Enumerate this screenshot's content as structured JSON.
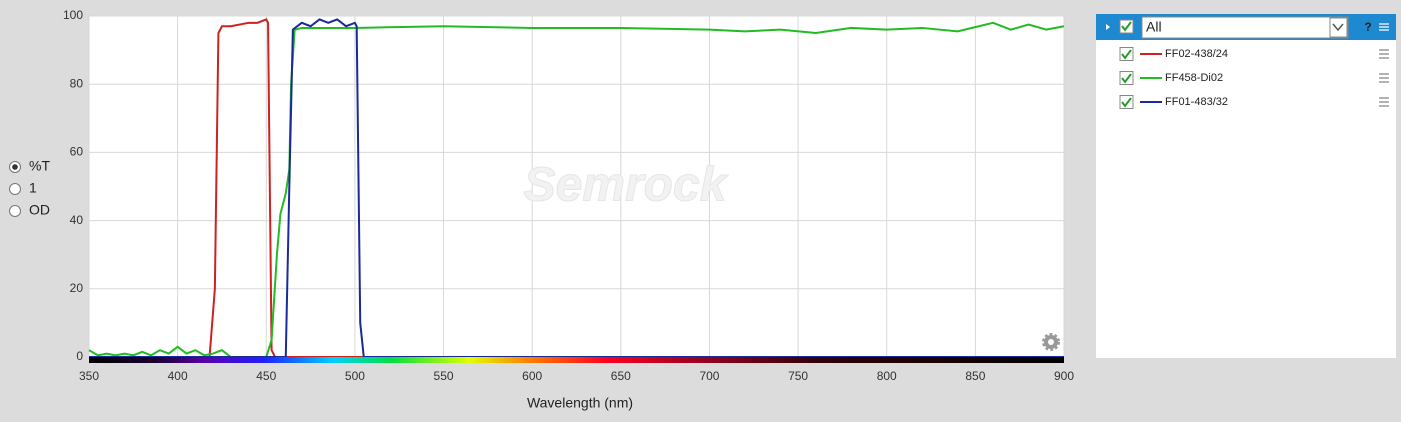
{
  "chart_data": {
    "type": "line",
    "watermark": "Semrock",
    "x_label": "Wavelength (nm)",
    "xlim": [
      350,
      900
    ],
    "xticks": [
      350,
      400,
      450,
      500,
      550,
      600,
      650,
      700,
      750,
      800,
      850,
      900
    ],
    "ylim": [
      0,
      100
    ],
    "yticks": [
      0,
      20,
      40,
      60,
      80,
      100
    ],
    "grid": true,
    "series": [
      {
        "name": "FF02-438/24",
        "color": "#cc2222",
        "x": [
          350,
          418,
          421,
          423,
          425,
          430,
          440,
          445,
          450,
          451,
          453,
          455,
          900
        ],
        "values": [
          0,
          0,
          20,
          95,
          97,
          97,
          98,
          98,
          99,
          98,
          2,
          0,
          0
        ]
      },
      {
        "name": "FF458-Di02",
        "color": "#22bb22",
        "x": [
          350,
          355,
          360,
          365,
          370,
          375,
          380,
          385,
          390,
          395,
          400,
          405,
          410,
          415,
          420,
          425,
          430,
          450,
          453,
          456,
          458,
          461,
          463,
          464,
          466,
          470,
          500,
          550,
          600,
          650,
          700,
          720,
          740,
          760,
          780,
          800,
          820,
          840,
          860,
          870,
          880,
          890,
          900
        ],
        "values": [
          2,
          0.5,
          1,
          0.5,
          1,
          0.5,
          1.5,
          0.5,
          2,
          1,
          3,
          1,
          2,
          0.5,
          1,
          2,
          0,
          0,
          5,
          30,
          42,
          48,
          55,
          80,
          96,
          96.5,
          96.5,
          97,
          96.5,
          96.5,
          96,
          95.5,
          96,
          95,
          96.5,
          96,
          96.5,
          95.5,
          98,
          96,
          97.5,
          96,
          97
        ]
      },
      {
        "name": "FF01-483/32",
        "color": "#1a2a99",
        "x": [
          350,
          461,
          463,
          465,
          470,
          475,
          480,
          485,
          490,
          495,
          500,
          501,
          503,
          505,
          900
        ],
        "values": [
          0,
          0,
          50,
          96,
          98,
          97,
          99,
          98,
          99,
          97,
          98,
          97,
          10,
          0,
          0
        ]
      }
    ]
  },
  "controls": {
    "options": [
      "%T",
      "1",
      "OD"
    ],
    "selected_index": 0
  },
  "filter_panel": {
    "header": "All",
    "help": "?"
  }
}
